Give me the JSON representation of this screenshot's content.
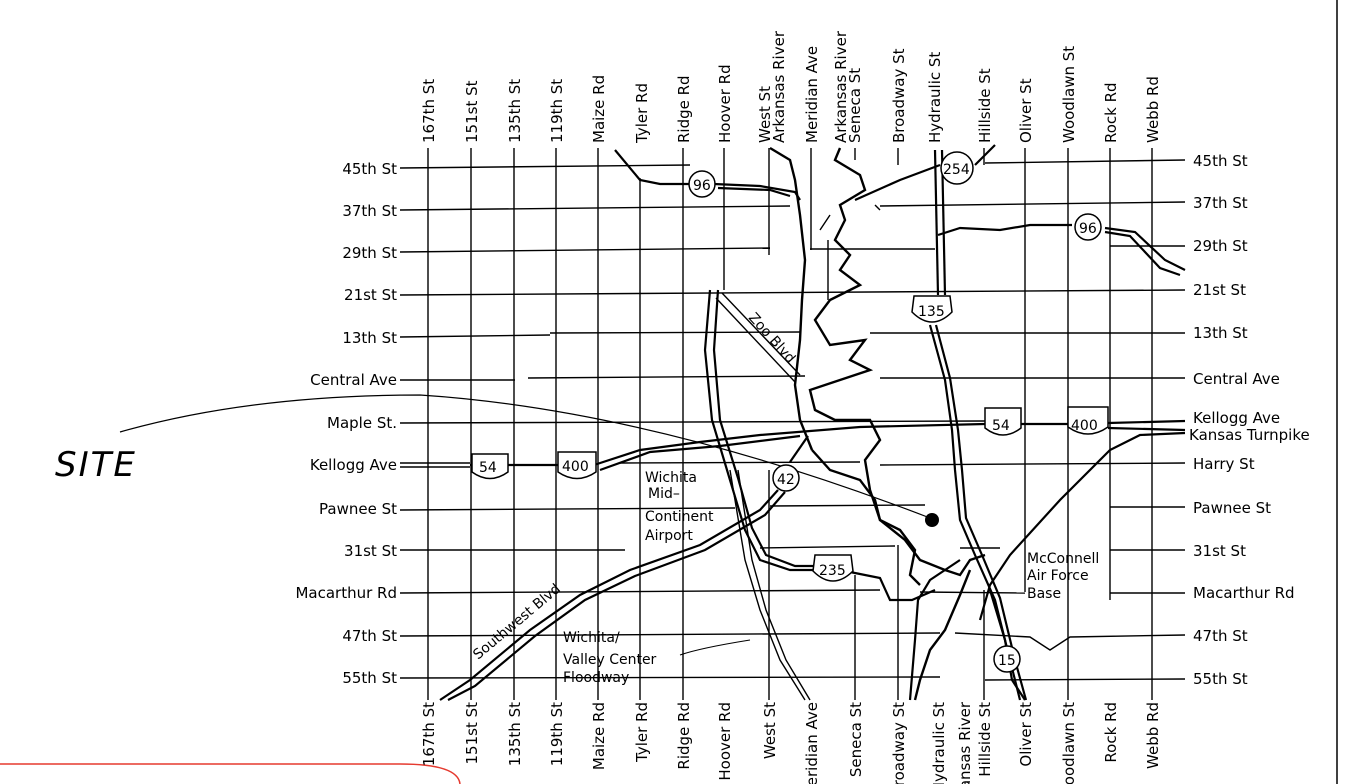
{
  "site_label": "SITE",
  "streets_left": [
    {
      "label": "45th St",
      "right": "45th St"
    },
    {
      "label": "37th St",
      "right": "37th St"
    },
    {
      "label": "29th St",
      "right": "29th St"
    },
    {
      "label": "21st St",
      "right": "21st St"
    },
    {
      "label": "13th St",
      "right": "13th St"
    },
    {
      "label": "Central Ave",
      "right": "Central Ave"
    },
    {
      "label": "Maple St.",
      "right": "Kellogg Ave"
    },
    {
      "label": "Kellogg Ave",
      "right": "Kansas Turnpike"
    },
    {
      "label": "Pawnee St",
      "right": "Harry St"
    },
    {
      "label": "31st St",
      "right": "Pawnee St"
    },
    {
      "label": "Macarthur Rd",
      "right": "31st St"
    },
    {
      "label": "47th St",
      "right": "Macarthur Rd"
    },
    {
      "label": "55th St",
      "right": "47th St"
    }
  ],
  "right_extra": "55th St",
  "top_streets": [
    "167th St",
    "151st St",
    "135th St",
    "119th St",
    "Maize Rd",
    "Tyler Rd",
    "Ridge Rd",
    "Hoover Rd",
    "West St",
    "Arkansas River",
    "Meridian Ave",
    "Arkansas River",
    "Seneca St",
    "Broadway St",
    "Hydraulic St",
    "Hillside St",
    "Oliver St",
    "Woodlawn St",
    "Rock Rd",
    "Webb Rd"
  ],
  "bottom_streets": [
    "167th St",
    "151st St",
    "135th St",
    "119th St",
    "Maize Rd",
    "Tyler Rd",
    "Ridge Rd",
    "Hoover Rd",
    "West St",
    "Meridian Ave",
    "Seneca St",
    "Broadway St",
    "Hydraulic St",
    "Arkansas River",
    "Hillside St",
    "Oliver St",
    "Woodlawn St",
    "Rock Rd",
    "Webb Rd"
  ],
  "shields": {
    "us54_a": "54",
    "us400_a": "400",
    "us54_b": "54",
    "us400_b": "400",
    "ks96_a": "96",
    "ks96_b": "96",
    "ks254": "254",
    "ks42": "42",
    "i135": "135",
    "i235": "235",
    "ks15": "15"
  },
  "labels": {
    "airport": [
      "Wichita",
      "Mid–",
      "Continent",
      "Airport"
    ],
    "floodway": [
      "Wichita/",
      "Valley Center",
      "Floodway"
    ],
    "mcconnell": [
      "McConnell",
      "Air Force",
      "Base"
    ],
    "southwest_blvd": "Southwest Blvd",
    "zoo_blvd": "Zoo Blvd"
  }
}
